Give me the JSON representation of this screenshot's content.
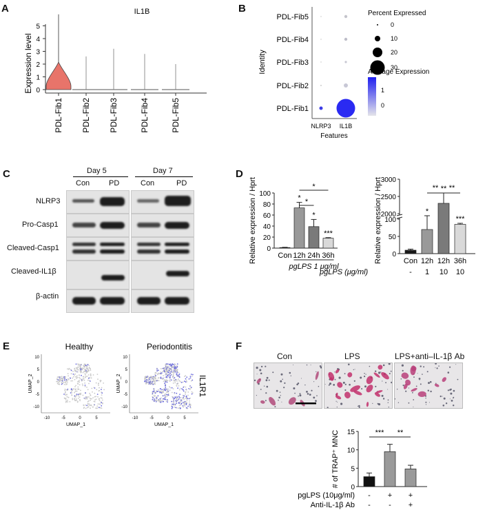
{
  "panels": {
    "a": "A",
    "b": "B",
    "c": "C",
    "d": "D",
    "e": "E",
    "f": "F"
  },
  "panelA": {
    "title": "IL1B",
    "ylabel": "Expression level",
    "yticks": [
      "0",
      "1",
      "2",
      "3",
      "4",
      "5"
    ],
    "groups": [
      "PDL-Fib1",
      "PDL-Fib2",
      "PDL-Fib3",
      "PDL-Fib4",
      "PDL-Fib5"
    ]
  },
  "panelB": {
    "identity_label": "Identity",
    "rows": [
      "PDL-Fib5",
      "PDL-Fib4",
      "PDL-Fib3",
      "PDL-Fib2",
      "PDL-Fib1"
    ],
    "features": [
      "NLRP3",
      "IL1B"
    ],
    "xlabel": "Features",
    "size_legend_title": "Percent Expressed",
    "size_legend": [
      "0",
      "10",
      "20",
      "30"
    ],
    "color_legend_title": "Average Expression",
    "color_legend": [
      "1",
      "0"
    ]
  },
  "panelC": {
    "days": [
      "Day 5",
      "Day 7"
    ],
    "lanes": [
      "Con",
      "PD",
      "Con",
      "PD"
    ],
    "proteins": [
      "NLRP3",
      "Pro-Casp1",
      "Cleaved-Casp1",
      "Cleaved-IL1β",
      "β-actin"
    ]
  },
  "panelE": {
    "titles": [
      "Healthy",
      "Periodontitis"
    ],
    "xlabel": "UMAP_1",
    "ylabel": "UMAP_2",
    "gene": "IL1R1",
    "xticks": [
      "-10",
      "-5",
      "0",
      "5"
    ],
    "yticks": [
      "10",
      "5",
      "0",
      "-5",
      "-10"
    ]
  },
  "panelF": {
    "images": [
      "Con",
      "LPS",
      "LPS+anti–IL-1β Ab"
    ],
    "treatments": [
      {
        "label": "pgLPS (10μg/ml)",
        "values": [
          "-",
          "+",
          "+"
        ]
      },
      {
        "label": "Anti-IL-1β Ab",
        "values": [
          "-",
          "-",
          "+"
        ]
      }
    ],
    "sig": [
      "***",
      "**"
    ]
  },
  "chart_data": [
    {
      "type": "bar",
      "panel": "D-left",
      "ylabel": "Relative expression / Hprt",
      "categories": [
        "Con",
        "12h",
        "24h",
        "36h"
      ],
      "values": [
        1,
        73,
        39,
        18
      ],
      "errors": [
        0.5,
        10,
        13,
        1
      ],
      "stars": [
        "",
        "*",
        "*",
        "***"
      ],
      "brackets": [
        {
          "from": "12h",
          "to": "24h",
          "label": "*"
        },
        {
          "from": "12h",
          "to": "36h",
          "label": "*"
        }
      ],
      "ylim": [
        0,
        100
      ],
      "yticks": [
        0,
        20,
        40,
        60,
        80,
        100
      ],
      "group_label": "pgLPS  1 μg/ml",
      "colors": [
        "#1a1a1a",
        "#999999",
        "#7a7a7a",
        "#d9d9d9"
      ]
    },
    {
      "type": "bar",
      "panel": "D-right",
      "ylabel": "Relative expression / Hprt",
      "categories": [
        "Con",
        "12h",
        "12h",
        "36h"
      ],
      "dose_label": "pgLPS (μg/ml)",
      "doses": [
        "-",
        "1",
        "10",
        "10"
      ],
      "values": [
        10,
        70,
        2300,
        85
      ],
      "errors": [
        3,
        40,
        300,
        3
      ],
      "stars": [
        "",
        "*",
        "**",
        "***"
      ],
      "brackets": [
        {
          "from": 1,
          "to": 2,
          "label": "**"
        },
        {
          "from": 2,
          "to": 3,
          "label": "**"
        }
      ],
      "axis_break": true,
      "yticks_low": [
        0,
        50,
        100
      ],
      "yticks_high": [
        2000,
        2500,
        3000
      ],
      "colors": [
        "#1a1a1a",
        "#999999",
        "#7a7a7a",
        "#d9d9d9"
      ]
    },
    {
      "type": "bar",
      "panel": "F",
      "ylabel": "# of TRAP⁺ MNC",
      "categories": [
        "Con",
        "LPS",
        "LPS+anti-IL-1β Ab"
      ],
      "values": [
        2.7,
        9.5,
        4.8
      ],
      "errors": [
        1,
        2,
        1
      ],
      "ylim": [
        0,
        15
      ],
      "yticks": [
        0,
        5,
        10,
        15
      ],
      "brackets": [
        {
          "from": 0,
          "to": 1,
          "label": "***"
        },
        {
          "from": 1,
          "to": 2,
          "label": "**"
        }
      ],
      "colors": [
        "#111111",
        "#9a9a9a",
        "#9a9a9a"
      ]
    }
  ]
}
